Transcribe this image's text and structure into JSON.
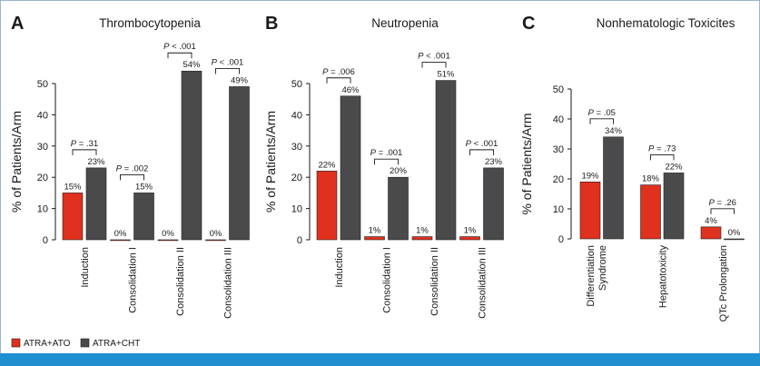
{
  "legend": {
    "series_a": {
      "label": "ATRA+ATO",
      "color": "#e0301e"
    },
    "series_b": {
      "label": "ATRA+CHT",
      "color": "#4a4a4c"
    }
  },
  "chart_data": [
    {
      "panel": "A",
      "type": "bar",
      "title": "Thrombocytopenia",
      "ylabel": "% of Patients/Arm",
      "ylim": [
        0,
        50
      ],
      "yticks": [
        "0",
        "10",
        "20",
        "30",
        "40",
        "50"
      ],
      "categories": [
        "Induction",
        "Consolidation I",
        "Consolidation II",
        "Consolidation III"
      ],
      "series": [
        {
          "name": "ATRA+ATO",
          "values": [
            15,
            0,
            0,
            0
          ],
          "labels": [
            "15%",
            "0%",
            "0%",
            "0%"
          ]
        },
        {
          "name": "ATRA+CHT",
          "values": [
            23,
            15,
            54,
            49
          ],
          "labels": [
            "23%",
            "15%",
            "54%",
            "49%"
          ]
        }
      ],
      "pvalues": [
        {
          "p": "P",
          "rest": " = .31"
        },
        {
          "p": "P",
          "rest": " = .002"
        },
        {
          "p": "P",
          "rest": " < .001"
        },
        {
          "p": "P",
          "rest": " < .001"
        }
      ]
    },
    {
      "panel": "B",
      "type": "bar",
      "title": "Neutropenia",
      "ylabel": "% of Patients/Arm",
      "ylim": [
        0,
        50
      ],
      "yticks": [
        "0",
        "10",
        "20",
        "30",
        "40",
        "50"
      ],
      "categories": [
        "Induction",
        "Consolidation I",
        "Consolidation II",
        "Consolidation III"
      ],
      "series": [
        {
          "name": "ATRA+ATO",
          "values": [
            22,
            1,
            1,
            1
          ],
          "labels": [
            "22%",
            "1%",
            "1%",
            "1%"
          ]
        },
        {
          "name": "ATRA+CHT",
          "values": [
            46,
            20,
            51,
            23
          ],
          "labels": [
            "46%",
            "20%",
            "51%",
            "23%"
          ]
        }
      ],
      "pvalues": [
        {
          "p": "P",
          "rest": " = .006"
        },
        {
          "p": "P",
          "rest": " = .001"
        },
        {
          "p": "P",
          "rest": " < .001"
        },
        {
          "p": "P",
          "rest": " < .001"
        }
      ]
    },
    {
      "panel": "C",
      "type": "bar",
      "title": "Nonhematologic Toxicites",
      "ylabel": "% of Patients/Arm",
      "ylim": [
        0,
        50
      ],
      "yticks": [
        "0",
        "10",
        "20",
        "30",
        "40",
        "50"
      ],
      "categories": [
        [
          "Differentiation",
          "Syndrome"
        ],
        "Hepatotoxicity",
        "QTc Prolongation"
      ],
      "series": [
        {
          "name": "ATRA+ATO",
          "values": [
            19,
            18,
            4
          ],
          "labels": [
            "19%",
            "18%",
            "4%"
          ]
        },
        {
          "name": "ATRA+CHT",
          "values": [
            34,
            22,
            0
          ],
          "labels": [
            "34%",
            "22%",
            "0%"
          ]
        }
      ],
      "pvalues": [
        {
          "p": "P",
          "rest": " = .05"
        },
        {
          "p": "P",
          "rest": " = .73"
        },
        {
          "p": "P",
          "rest": " = .26"
        }
      ]
    }
  ]
}
